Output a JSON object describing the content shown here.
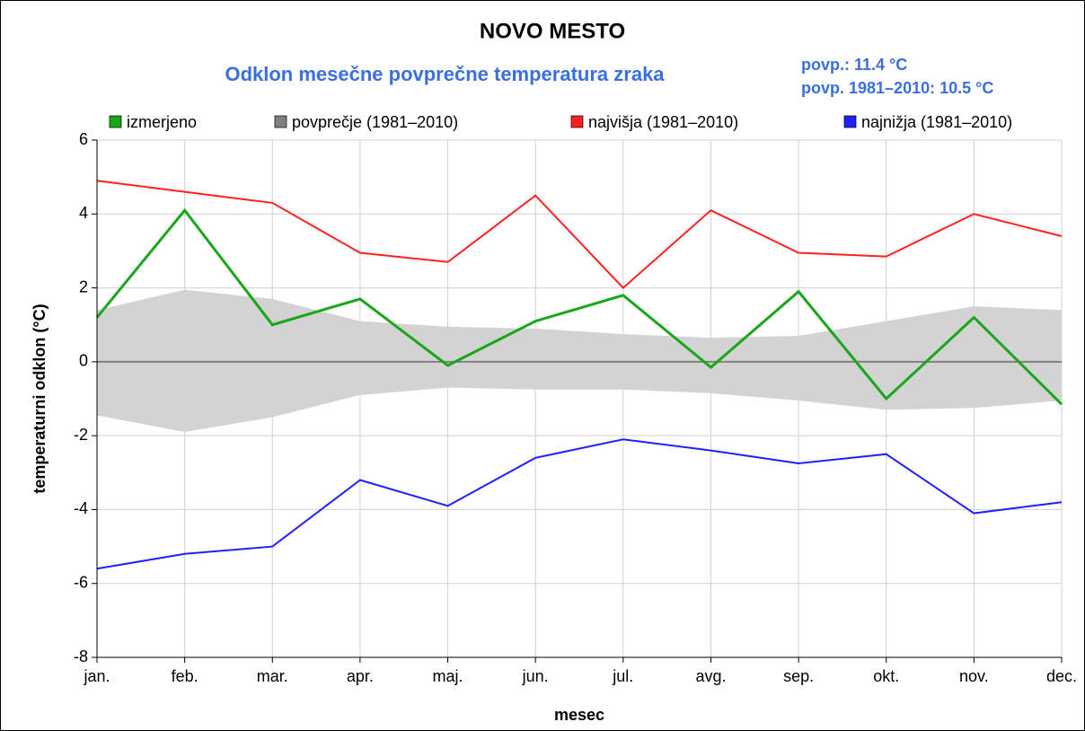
{
  "chart_data": {
    "type": "line",
    "title": "NOVO MESTO",
    "subtitle": "Odklon mesečne povprečne temperatura zraka",
    "annotations": [
      "povp.: 11.4 °C",
      "povp. 1981–2010: 10.5 °C"
    ],
    "x_label": "mesec",
    "y_label": "temperaturni odklon (°C)",
    "categories": [
      "jan.",
      "feb.",
      "mar.",
      "apr.",
      "maj.",
      "jun.",
      "jul.",
      "avg.",
      "sep.",
      "okt.",
      "nov.",
      "dec."
    ],
    "ylim": [
      -8,
      6
    ],
    "yticks": [
      -8,
      -6,
      -4,
      -2,
      0,
      2,
      4,
      6
    ],
    "grid": true,
    "legend": "top",
    "series": [
      {
        "name": "izmerjeno",
        "color": "#1aa61a",
        "values": [
          1.2,
          4.1,
          1.0,
          1.7,
          -0.1,
          1.1,
          1.8,
          -0.15,
          1.9,
          -1.0,
          1.2,
          -1.15
        ]
      },
      {
        "name": "povprečje (1981–2010)",
        "color": "#808080",
        "band_color": "#d3d3d3",
        "values": [
          0,
          0,
          0,
          0,
          0,
          0,
          0,
          0,
          0,
          0,
          0,
          0
        ],
        "high": [
          1.4,
          1.95,
          1.7,
          1.1,
          0.95,
          0.9,
          0.75,
          0.65,
          0.7,
          1.1,
          1.5,
          1.4
        ],
        "low": [
          -1.45,
          -1.9,
          -1.5,
          -0.9,
          -0.7,
          -0.75,
          -0.75,
          -0.85,
          -1.05,
          -1.3,
          -1.25,
          -1.05
        ]
      },
      {
        "name": "najvišja (1981–2010)",
        "color": "#ff2020",
        "values": [
          4.9,
          4.6,
          4.3,
          2.95,
          2.7,
          4.5,
          2.0,
          4.1,
          2.95,
          2.85,
          4.0,
          3.4
        ]
      },
      {
        "name": "najnižja (1981–2010)",
        "color": "#2020ff",
        "values": [
          -5.6,
          -5.2,
          -5.0,
          -3.2,
          -3.9,
          -2.6,
          -2.1,
          -2.4,
          -2.75,
          -2.5,
          -4.1,
          -3.8
        ]
      }
    ]
  }
}
